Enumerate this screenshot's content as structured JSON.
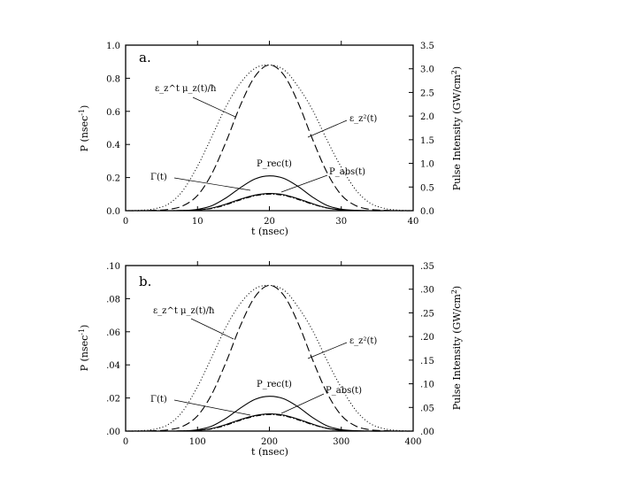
{
  "chart_data": [
    {
      "type": "line",
      "panel_label": "a.",
      "xlabel": "t (nsec)",
      "ylabel": "P (nsec",
      "ylabel_sup": "-1",
      "ylabel_end": ")",
      "y2label": "Pulse Intensity (GW/cm",
      "y2label_sup": "2",
      "y2label_end": ")",
      "xlim": [
        0,
        40
      ],
      "ylim": [
        0,
        1.0
      ],
      "y2lim": [
        0,
        3.5
      ],
      "x_ticks": [
        "0",
        "10",
        "20",
        "30",
        "40"
      ],
      "y_ticks": [
        "0.0",
        "0.2",
        "0.4",
        "0.6",
        "0.8",
        "1.0"
      ],
      "y2_ticks": [
        "0.0",
        "0.5",
        "1.0",
        "1.5",
        "2.0",
        "2.5",
        "3.0",
        "3.5"
      ],
      "x": [
        0,
        2,
        4,
        6,
        8,
        10,
        12,
        14,
        16,
        18,
        20,
        22,
        24,
        26,
        28,
        30,
        32,
        34,
        36,
        38,
        40
      ],
      "series": [
        {
          "name": "ε_z^t μ_z(t)/ħ",
          "style": "dotted",
          "y": [
            0.0,
            0.002,
            0.011,
            0.042,
            0.123,
            0.269,
            0.448,
            0.632,
            0.773,
            0.86,
            0.88,
            0.852,
            0.75,
            0.608,
            0.428,
            0.262,
            0.127,
            0.046,
            0.014,
            0.003,
            0.0
          ]
        },
        {
          "name": "ε_z²(t)",
          "style": "dashed",
          "y": [
            0.0,
            0.0,
            0.002,
            0.008,
            0.03,
            0.092,
            0.224,
            0.42,
            0.64,
            0.812,
            0.88,
            0.82,
            0.652,
            0.431,
            0.232,
            0.095,
            0.031,
            0.008,
            0.002,
            0.0,
            0.0
          ]
        },
        {
          "name": "P_rec(t)",
          "style": "solid",
          "y": [
            0.0,
            0.0,
            0.0,
            0.0,
            0.001,
            0.008,
            0.03,
            0.078,
            0.14,
            0.192,
            0.21,
            0.195,
            0.146,
            0.082,
            0.032,
            0.009,
            0.002,
            0.0,
            0.0,
            0.0,
            0.0
          ]
        },
        {
          "name": "Γ(t)",
          "style": "solid",
          "y": [
            0.0,
            0.0,
            0.0,
            0.0,
            0.001,
            0.004,
            0.016,
            0.04,
            0.07,
            0.094,
            0.104,
            0.096,
            0.072,
            0.042,
            0.017,
            0.005,
            0.001,
            0.0,
            0.0,
            0.0,
            0.0
          ]
        },
        {
          "name": "P_abs(t)",
          "style": "dashdot",
          "y": [
            0.0,
            0.0,
            0.0,
            0.0,
            0.001,
            0.004,
            0.014,
            0.036,
            0.066,
            0.09,
            0.1,
            0.092,
            0.068,
            0.039,
            0.016,
            0.005,
            0.001,
            0.0,
            0.0,
            0.0,
            0.0
          ]
        }
      ]
    },
    {
      "type": "line",
      "panel_label": "b.",
      "xlabel": "t (nsec)",
      "ylabel": "P (nsec",
      "ylabel_sup": "-1",
      "ylabel_end": ")",
      "y2label": "Pulse Intensity (GW/cm",
      "y2label_sup": "2",
      "y2label_end": ")",
      "xlim": [
        0,
        400
      ],
      "ylim": [
        0,
        0.1
      ],
      "y2lim": [
        0,
        0.35
      ],
      "x_ticks": [
        "0",
        "100",
        "200",
        "300",
        "400"
      ],
      "y_ticks": [
        ".00",
        ".02",
        ".04",
        ".06",
        ".08",
        ".10"
      ],
      "y2_ticks": [
        ".00",
        ".05",
        ".10",
        ".15",
        ".20",
        ".25",
        ".30",
        ".35"
      ],
      "x": [
        0,
        20,
        40,
        60,
        80,
        100,
        120,
        140,
        160,
        180,
        200,
        220,
        240,
        260,
        280,
        300,
        320,
        340,
        360,
        380,
        400
      ],
      "series": [
        {
          "name": "ε_z^t μ_z(t)/ħ",
          "style": "dotted",
          "y": [
            0.0,
            0.0002,
            0.0011,
            0.0042,
            0.0123,
            0.0269,
            0.0448,
            0.0632,
            0.0773,
            0.086,
            0.088,
            0.0852,
            0.075,
            0.0608,
            0.0428,
            0.0262,
            0.0127,
            0.0046,
            0.0014,
            0.0003,
            0.0
          ]
        },
        {
          "name": "ε_z²(t)",
          "style": "dashed",
          "y": [
            0.0,
            0.0,
            0.0002,
            0.0008,
            0.003,
            0.0092,
            0.0224,
            0.042,
            0.064,
            0.0812,
            0.088,
            0.082,
            0.0652,
            0.0431,
            0.0232,
            0.0095,
            0.0031,
            0.0008,
            0.0002,
            0.0,
            0.0
          ]
        },
        {
          "name": "P_rec(t)",
          "style": "solid",
          "y": [
            0.0,
            0.0,
            0.0,
            0.0,
            0.0001,
            0.0008,
            0.003,
            0.0078,
            0.014,
            0.0192,
            0.021,
            0.0195,
            0.0146,
            0.0082,
            0.0032,
            0.0009,
            0.0002,
            0.0,
            0.0,
            0.0,
            0.0
          ]
        },
        {
          "name": "Γ(t)",
          "style": "solid",
          "y": [
            0.0,
            0.0,
            0.0,
            0.0,
            0.0001,
            0.0004,
            0.0016,
            0.004,
            0.007,
            0.0094,
            0.0104,
            0.0096,
            0.0072,
            0.0042,
            0.0017,
            0.0005,
            0.0001,
            0.0,
            0.0,
            0.0,
            0.0
          ]
        },
        {
          "name": "P_abs(t)",
          "style": "dashdot",
          "y": [
            0.0,
            0.0,
            0.0,
            0.0,
            0.0001,
            0.0004,
            0.0014,
            0.0036,
            0.0066,
            0.009,
            0.01,
            0.0092,
            0.0068,
            0.0039,
            0.0016,
            0.0005,
            0.0001,
            0.0,
            0.0,
            0.0,
            0.0
          ]
        }
      ]
    }
  ]
}
